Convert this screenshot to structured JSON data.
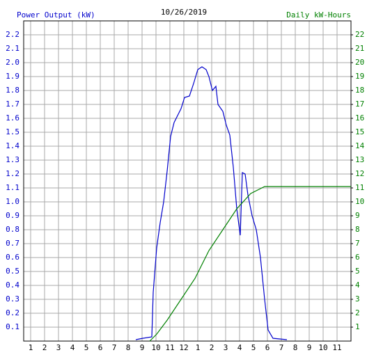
{
  "chart_data": {
    "type": "line",
    "title": "10/26/2019",
    "ylabel": "Power Output (kW)",
    "y2label": "Daily kW-Hours",
    "xlim": [
      0.5,
      24
    ],
    "xticks": [
      1,
      2,
      3,
      4,
      5,
      6,
      7,
      8,
      9,
      10,
      11,
      12,
      {
        "value": 13,
        "label": "1"
      },
      {
        "value": 14,
        "label": "2"
      },
      {
        "value": 15,
        "label": "3"
      },
      {
        "value": 16,
        "label": "4"
      },
      {
        "value": 17,
        "label": "5"
      },
      {
        "value": 18,
        "label": "6"
      },
      {
        "value": 19,
        "label": "7"
      },
      {
        "value": 20,
        "label": "8"
      },
      {
        "value": 21,
        "label": "9"
      },
      {
        "value": 22,
        "label": "10"
      },
      {
        "value": 23,
        "label": "11"
      }
    ],
    "ylim": [
      0,
      2.3
    ],
    "yticks": [
      0.1,
      0.2,
      0.3,
      0.4,
      0.5,
      0.6,
      0.7,
      0.8,
      0.9,
      {
        "value": 1,
        "label": "1.0"
      },
      1.1,
      1.2,
      1.3,
      1.4,
      1.5,
      1.6,
      1.7,
      1.8,
      1.9,
      {
        "value": 2,
        "label": "2.0"
      },
      2.1,
      2.2
    ],
    "y2lim": [
      0,
      23
    ],
    "y2ticks": [
      1,
      2,
      3,
      4,
      5,
      6,
      7,
      8,
      9,
      10,
      11,
      12,
      13,
      14,
      15,
      16,
      17,
      18,
      19,
      20,
      21,
      22
    ],
    "grid": true,
    "ycolor": "#0000cc",
    "y2color": "#008000",
    "series": [
      {
        "color": "#0000cc",
        "x": [
          8.55,
          9.05,
          9.7,
          9.8,
          10.05,
          10.3,
          10.55,
          10.8,
          11.05,
          11.3,
          11.55,
          11.8,
          12.05,
          12.4,
          12.7,
          13.0,
          13.3,
          13.6,
          13.8,
          14.05,
          14.3,
          14.45,
          14.8,
          15.05,
          15.3,
          15.55,
          15.8,
          16.05,
          16.2,
          16.4,
          16.6,
          16.9,
          17.2,
          17.5,
          17.8,
          18.05,
          18.4,
          19.4
        ],
        "values": [
          0.01,
          0.02,
          0.03,
          0.35,
          0.67,
          0.85,
          1.0,
          1.22,
          1.47,
          1.57,
          1.62,
          1.67,
          1.75,
          1.76,
          1.85,
          1.95,
          1.97,
          1.95,
          1.9,
          1.8,
          1.83,
          1.7,
          1.65,
          1.55,
          1.48,
          1.25,
          0.95,
          0.76,
          1.21,
          1.2,
          1.05,
          0.9,
          0.8,
          0.6,
          0.3,
          0.08,
          0.02,
          0.01
        ]
      },
      {
        "color": "#008000",
        "axis": "y2",
        "x": [
          9.55,
          10.05,
          10.8,
          11.8,
          12.8,
          13.8,
          14.8,
          15.8,
          16.8,
          17.8,
          24
        ],
        "values": [
          0,
          0.5,
          1.5,
          3.0,
          4.5,
          6.5,
          8.0,
          9.5,
          10.6,
          11.1,
          11.1
        ]
      }
    ]
  }
}
